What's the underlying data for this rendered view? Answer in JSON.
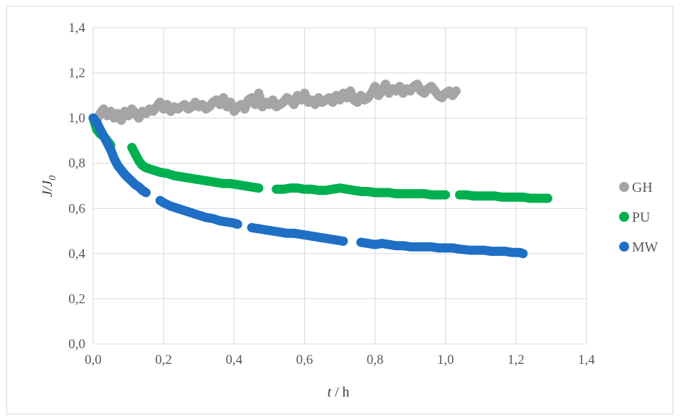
{
  "chart_data": {
    "type": "scatter",
    "xlabel": {
      "italic": "t",
      "rest": " / h"
    },
    "ylabel": {
      "main": "J/J",
      "sub": "0"
    },
    "xlim": [
      0,
      1.4
    ],
    "ylim": [
      0,
      1.4
    ],
    "xticks": [
      "0,0",
      "0,2",
      "0,4",
      "0,6",
      "0,8",
      "1,0",
      "1,2",
      "1,4"
    ],
    "yticks": [
      "0,0",
      "0,2",
      "0,4",
      "0,6",
      "0,8",
      "1,0",
      "1,2",
      "1,4"
    ],
    "grid": true,
    "legend_position": "right",
    "series": [
      {
        "name": "GH",
        "color": "#a5a5a5",
        "points": [
          [
            0.0,
            1.0
          ],
          [
            0.01,
            0.99
          ],
          [
            0.02,
            1.02
          ],
          [
            0.03,
            1.04
          ],
          [
            0.04,
            1.01
          ],
          [
            0.05,
            1.03
          ],
          [
            0.06,
            1.0
          ],
          [
            0.07,
            1.02
          ],
          [
            0.08,
            0.99
          ],
          [
            0.09,
            1.03
          ],
          [
            0.1,
            1.01
          ],
          [
            0.11,
            1.04
          ],
          [
            0.12,
            1.02
          ],
          [
            0.13,
            1.0
          ],
          [
            0.14,
            1.03
          ],
          [
            0.15,
            1.02
          ],
          [
            0.16,
            1.04
          ],
          [
            0.17,
            1.03
          ],
          [
            0.18,
            1.05
          ],
          [
            0.19,
            1.07
          ],
          [
            0.2,
            1.04
          ],
          [
            0.21,
            1.06
          ],
          [
            0.22,
            1.03
          ],
          [
            0.23,
            1.05
          ],
          [
            0.24,
            1.04
          ],
          [
            0.25,
            1.05
          ],
          [
            0.26,
            1.06
          ],
          [
            0.27,
            1.04
          ],
          [
            0.28,
            1.05
          ],
          [
            0.29,
            1.07
          ],
          [
            0.3,
            1.05
          ],
          [
            0.31,
            1.06
          ],
          [
            0.32,
            1.04
          ],
          [
            0.33,
            1.05
          ],
          [
            0.34,
            1.07
          ],
          [
            0.35,
            1.08
          ],
          [
            0.36,
            1.06
          ],
          [
            0.37,
            1.09
          ],
          [
            0.38,
            1.05
          ],
          [
            0.39,
            1.07
          ],
          [
            0.4,
            1.03
          ],
          [
            0.41,
            1.05
          ],
          [
            0.42,
            1.06
          ],
          [
            0.43,
            1.04
          ],
          [
            0.44,
            1.08
          ],
          [
            0.45,
            1.09
          ],
          [
            0.46,
            1.06
          ],
          [
            0.47,
            1.11
          ],
          [
            0.48,
            1.05
          ],
          [
            0.49,
            1.07
          ],
          [
            0.5,
            1.06
          ],
          [
            0.51,
            1.08
          ],
          [
            0.52,
            1.05
          ],
          [
            0.53,
            1.06
          ],
          [
            0.54,
            1.07
          ],
          [
            0.55,
            1.09
          ],
          [
            0.56,
            1.08
          ],
          [
            0.57,
            1.06
          ],
          [
            0.58,
            1.1
          ],
          [
            0.59,
            1.08
          ],
          [
            0.6,
            1.11
          ],
          [
            0.61,
            1.07
          ],
          [
            0.62,
            1.08
          ],
          [
            0.63,
            1.06
          ],
          [
            0.64,
            1.09
          ],
          [
            0.65,
            1.07
          ],
          [
            0.66,
            1.08
          ],
          [
            0.67,
            1.09
          ],
          [
            0.68,
            1.07
          ],
          [
            0.69,
            1.1
          ],
          [
            0.7,
            1.08
          ],
          [
            0.71,
            1.11
          ],
          [
            0.72,
            1.09
          ],
          [
            0.73,
            1.12
          ],
          [
            0.74,
            1.08
          ],
          [
            0.75,
            1.07
          ],
          [
            0.76,
            1.1
          ],
          [
            0.77,
            1.08
          ],
          [
            0.78,
            1.09
          ],
          [
            0.79,
            1.11
          ],
          [
            0.8,
            1.14
          ],
          [
            0.81,
            1.1
          ],
          [
            0.82,
            1.12
          ],
          [
            0.83,
            1.15
          ],
          [
            0.84,
            1.11
          ],
          [
            0.85,
            1.13
          ],
          [
            0.86,
            1.12
          ],
          [
            0.87,
            1.14
          ],
          [
            0.88,
            1.11
          ],
          [
            0.89,
            1.13
          ],
          [
            0.9,
            1.12
          ],
          [
            0.91,
            1.14
          ],
          [
            0.92,
            1.15
          ],
          [
            0.93,
            1.12
          ],
          [
            0.94,
            1.11
          ],
          [
            0.95,
            1.13
          ],
          [
            0.96,
            1.14
          ],
          [
            0.97,
            1.12
          ],
          [
            0.98,
            1.1
          ],
          [
            0.99,
            1.09
          ],
          [
            1.0,
            1.11
          ],
          [
            1.01,
            1.12
          ],
          [
            1.02,
            1.1
          ],
          [
            1.03,
            1.12
          ]
        ]
      },
      {
        "name": "PU",
        "color": "#00b050",
        "points": [
          [
            0.0,
            1.0
          ],
          [
            0.01,
            0.95
          ],
          [
            0.02,
            0.93
          ],
          [
            0.03,
            0.92
          ],
          [
            0.04,
            0.9
          ],
          [
            0.05,
            0.88
          ],
          [
            0.11,
            0.87
          ],
          [
            0.12,
            0.84
          ],
          [
            0.13,
            0.81
          ],
          [
            0.14,
            0.79
          ],
          [
            0.15,
            0.78
          ],
          [
            0.17,
            0.77
          ],
          [
            0.19,
            0.76
          ],
          [
            0.21,
            0.755
          ],
          [
            0.23,
            0.745
          ],
          [
            0.25,
            0.74
          ],
          [
            0.27,
            0.735
          ],
          [
            0.29,
            0.73
          ],
          [
            0.31,
            0.725
          ],
          [
            0.33,
            0.72
          ],
          [
            0.35,
            0.715
          ],
          [
            0.37,
            0.71
          ],
          [
            0.39,
            0.71
          ],
          [
            0.41,
            0.705
          ],
          [
            0.43,
            0.7
          ],
          [
            0.45,
            0.695
          ],
          [
            0.47,
            0.69
          ],
          [
            0.52,
            0.685
          ],
          [
            0.54,
            0.685
          ],
          [
            0.56,
            0.69
          ],
          [
            0.58,
            0.69
          ],
          [
            0.6,
            0.685
          ],
          [
            0.62,
            0.685
          ],
          [
            0.64,
            0.68
          ],
          [
            0.66,
            0.68
          ],
          [
            0.68,
            0.685
          ],
          [
            0.7,
            0.69
          ],
          [
            0.72,
            0.685
          ],
          [
            0.74,
            0.68
          ],
          [
            0.76,
            0.675
          ],
          [
            0.78,
            0.675
          ],
          [
            0.8,
            0.67
          ],
          [
            0.82,
            0.67
          ],
          [
            0.84,
            0.67
          ],
          [
            0.86,
            0.665
          ],
          [
            0.88,
            0.665
          ],
          [
            0.9,
            0.665
          ],
          [
            0.92,
            0.665
          ],
          [
            0.94,
            0.665
          ],
          [
            0.96,
            0.66
          ],
          [
            0.98,
            0.66
          ],
          [
            1.0,
            0.66
          ],
          [
            1.04,
            0.66
          ],
          [
            1.06,
            0.66
          ],
          [
            1.08,
            0.655
          ],
          [
            1.1,
            0.655
          ],
          [
            1.12,
            0.655
          ],
          [
            1.14,
            0.655
          ],
          [
            1.16,
            0.65
          ],
          [
            1.18,
            0.65
          ],
          [
            1.2,
            0.65
          ],
          [
            1.22,
            0.65
          ],
          [
            1.24,
            0.645
          ],
          [
            1.26,
            0.645
          ],
          [
            1.28,
            0.645
          ],
          [
            1.29,
            0.645
          ]
        ]
      },
      {
        "name": "MW",
        "color": "#1f6fc5",
        "points": [
          [
            0.0,
            1.0
          ],
          [
            0.01,
            0.98
          ],
          [
            0.02,
            0.95
          ],
          [
            0.03,
            0.92
          ],
          [
            0.04,
            0.89
          ],
          [
            0.05,
            0.86
          ],
          [
            0.06,
            0.82
          ],
          [
            0.07,
            0.79
          ],
          [
            0.08,
            0.77
          ],
          [
            0.09,
            0.75
          ],
          [
            0.1,
            0.735
          ],
          [
            0.11,
            0.72
          ],
          [
            0.12,
            0.705
          ],
          [
            0.13,
            0.695
          ],
          [
            0.14,
            0.68
          ],
          [
            0.15,
            0.67
          ],
          [
            0.19,
            0.635
          ],
          [
            0.2,
            0.625
          ],
          [
            0.22,
            0.61
          ],
          [
            0.24,
            0.6
          ],
          [
            0.26,
            0.59
          ],
          [
            0.28,
            0.58
          ],
          [
            0.3,
            0.57
          ],
          [
            0.32,
            0.56
          ],
          [
            0.34,
            0.555
          ],
          [
            0.36,
            0.545
          ],
          [
            0.38,
            0.54
          ],
          [
            0.4,
            0.535
          ],
          [
            0.41,
            0.53
          ],
          [
            0.45,
            0.515
          ],
          [
            0.47,
            0.51
          ],
          [
            0.49,
            0.505
          ],
          [
            0.51,
            0.5
          ],
          [
            0.53,
            0.495
          ],
          [
            0.55,
            0.49
          ],
          [
            0.57,
            0.49
          ],
          [
            0.59,
            0.485
          ],
          [
            0.61,
            0.48
          ],
          [
            0.63,
            0.475
          ],
          [
            0.65,
            0.47
          ],
          [
            0.67,
            0.465
          ],
          [
            0.69,
            0.46
          ],
          [
            0.71,
            0.455
          ],
          [
            0.76,
            0.45
          ],
          [
            0.78,
            0.445
          ],
          [
            0.8,
            0.44
          ],
          [
            0.82,
            0.445
          ],
          [
            0.84,
            0.44
          ],
          [
            0.86,
            0.435
          ],
          [
            0.88,
            0.435
          ],
          [
            0.9,
            0.43
          ],
          [
            0.92,
            0.43
          ],
          [
            0.94,
            0.43
          ],
          [
            0.96,
            0.43
          ],
          [
            0.98,
            0.425
          ],
          [
            1.0,
            0.425
          ],
          [
            1.02,
            0.425
          ],
          [
            1.04,
            0.42
          ],
          [
            1.07,
            0.415
          ],
          [
            1.09,
            0.415
          ],
          [
            1.11,
            0.415
          ],
          [
            1.13,
            0.41
          ],
          [
            1.15,
            0.41
          ],
          [
            1.17,
            0.41
          ],
          [
            1.19,
            0.405
          ],
          [
            1.21,
            0.405
          ],
          [
            1.22,
            0.4
          ]
        ]
      }
    ]
  }
}
